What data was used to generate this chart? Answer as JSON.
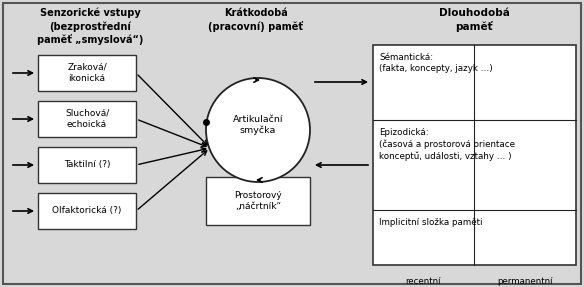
{
  "bg_color": "#d8d8d8",
  "box_bg": "#ffffff",
  "box_border": "#222222",
  "text_color": "#000000",
  "fig_width": 5.84,
  "fig_height": 2.87,
  "title_sensory": "Senzorické vstupy\n(bezprostřední\npaměť „smyslová“)",
  "title_short": "Krátkodobá\n(pracovní) paměť",
  "title_long": "Dlouhodobá\npaměť",
  "sensory_boxes": [
    "Zraková/\nikonická",
    "Sluchová/\nechoická",
    "Taktilní (?)",
    "Olfaktorická (?)"
  ],
  "articulation_label": "Artikulační\nsmyčka",
  "spatial_label": "Prostorový\n„náčrtník“",
  "long_term_sections": [
    "Sémantická:\n(fakta, koncepty, jazyk …)",
    "Epizodická:\n(časová a prostorová orientace\nkonceptŭ, události, vztahy … )",
    "Implicitní složka paměti"
  ],
  "sublabels": [
    "recentní",
    "permanentní"
  ]
}
